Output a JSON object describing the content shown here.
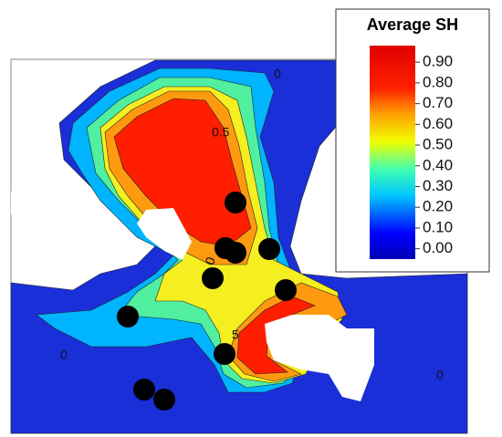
{
  "colorbar": {
    "title": "Average SH",
    "clim": [
      -0.05,
      0.98
    ],
    "ticks": [
      {
        "value": 0,
        "label": "0.00"
      },
      {
        "value": 0.1,
        "label": "0.10"
      },
      {
        "value": 0.2,
        "label": "0.20"
      },
      {
        "value": 0.3,
        "label": "0.30"
      },
      {
        "value": 0.4,
        "label": "0.40"
      },
      {
        "value": 0.5,
        "label": "0.50"
      },
      {
        "value": 0.6,
        "label": "0.60"
      },
      {
        "value": 0.7,
        "label": "0.70"
      },
      {
        "value": 0.8,
        "label": "0.80"
      },
      {
        "value": 0.9,
        "label": "0.90"
      }
    ]
  },
  "contour_labels": [
    "0",
    "0.5",
    "0",
    "5",
    "0",
    "0"
  ]
}
